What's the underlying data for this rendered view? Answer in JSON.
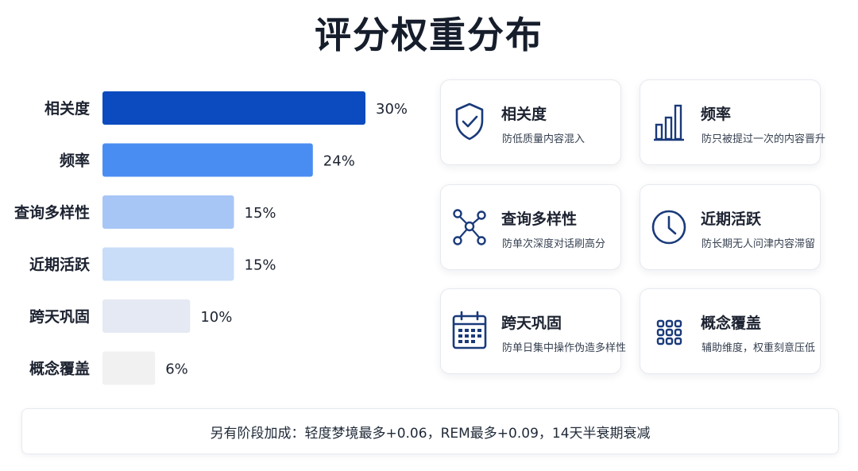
{
  "title": "评分权重分布",
  "chart_data": {
    "type": "bar",
    "orientation": "horizontal",
    "categories": [
      "相关度",
      "频率",
      "查询多样性",
      "近期活跃",
      "跨天巩固",
      "概念覆盖"
    ],
    "values": [
      30,
      24,
      15,
      15,
      10,
      6
    ],
    "value_labels": [
      "30%",
      "24%",
      "15%",
      "15%",
      "10%",
      "6%"
    ],
    "colors": [
      "#0b4bbf",
      "#4a8df2",
      "#a7c6f6",
      "#c9dcf8",
      "#e4e9f3",
      "#f1f1f2"
    ],
    "xlim": [
      0,
      30
    ],
    "grid": false,
    "legend": "none"
  },
  "cards": [
    {
      "icon": "shield-check-icon",
      "title": "相关度",
      "desc": "防低质量内容混入"
    },
    {
      "icon": "bar-chart-icon",
      "title": "频率",
      "desc": "防只被提过一次的内容晋升"
    },
    {
      "icon": "network-nodes-icon",
      "title": "查询多样性",
      "desc": "防单次深度对话刷高分"
    },
    {
      "icon": "clock-icon",
      "title": "近期活跃",
      "desc": "防长期无人问津内容滞留"
    },
    {
      "icon": "calendar-icon",
      "title": "跨天巩固",
      "desc": "防单日集中操作伪造多样性"
    },
    {
      "icon": "grid-icon",
      "title": "概念覆盖",
      "desc": "辅助维度，权重刻意压低"
    }
  ],
  "footer": "另有阶段加成：轻度梦境最多+0.06，REM最多+0.09，14天半衰期衰减",
  "icon_color": "#1a3a7a"
}
